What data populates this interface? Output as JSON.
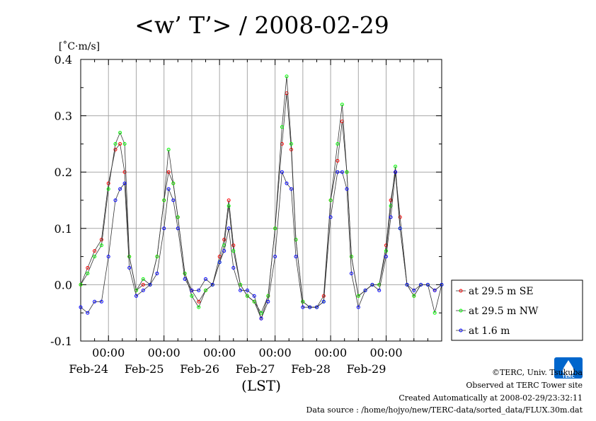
{
  "chart_data": {
    "type": "line",
    "title": "<w’ T’> / 2008-02-29",
    "ylabel": "[˚C·m/s]",
    "xlabel": "(LST)",
    "ylim": [
      -0.1,
      0.4
    ],
    "yticks": [
      "0.4",
      "0.3",
      "0.2",
      "0.1",
      "0.0",
      "-0.1"
    ],
    "xlim": [
      "2008-02-23 12:00",
      "2008-02-29 24:00"
    ],
    "xticks": [
      {
        "time": "00:00",
        "date": "Feb-24"
      },
      {
        "time": "00:00",
        "date": "Feb-25"
      },
      {
        "time": "00:00",
        "date": "Feb-26"
      },
      {
        "time": "00:00",
        "date": "Feb-27"
      },
      {
        "time": "00:00",
        "date": "Feb-28"
      },
      {
        "time": "00:00",
        "date": "Feb-29"
      }
    ],
    "grid": true,
    "legend_position": "right-bottom",
    "series": [
      {
        "name": "at 29.5 m SE",
        "color": "#ff0000",
        "points": [
          [
            "2008-02-23 12:00",
            0.0
          ],
          [
            "2008-02-23 15:00",
            0.03
          ],
          [
            "2008-02-23 18:00",
            0.06
          ],
          [
            "2008-02-23 21:00",
            0.08
          ],
          [
            "2008-02-24 00:00",
            0.18
          ],
          [
            "2008-02-24 03:00",
            0.24
          ],
          [
            "2008-02-24 05:00",
            0.25
          ],
          [
            "2008-02-24 07:00",
            0.2
          ],
          [
            "2008-02-24 09:00",
            0.05
          ],
          [
            "2008-02-24 12:00",
            -0.01
          ],
          [
            "2008-02-24 15:00",
            0.0
          ],
          [
            "2008-02-24 18:00",
            0.0
          ],
          [
            "2008-02-24 21:00",
            0.05
          ],
          [
            "2008-02-25 00:00",
            0.15
          ],
          [
            "2008-02-25 02:00",
            0.2
          ],
          [
            "2008-02-25 04:00",
            0.18
          ],
          [
            "2008-02-25 06:00",
            0.12
          ],
          [
            "2008-02-25 09:00",
            0.02
          ],
          [
            "2008-02-25 12:00",
            -0.01
          ],
          [
            "2008-02-25 15:00",
            -0.03
          ],
          [
            "2008-02-25 18:00",
            -0.01
          ],
          [
            "2008-02-25 21:00",
            0.0
          ],
          [
            "2008-02-26 00:00",
            0.05
          ],
          [
            "2008-02-26 02:00",
            0.08
          ],
          [
            "2008-02-26 04:00",
            0.15
          ],
          [
            "2008-02-26 06:00",
            0.07
          ],
          [
            "2008-02-26 09:00",
            0.0
          ],
          [
            "2008-02-26 12:00",
            -0.02
          ],
          [
            "2008-02-26 15:00",
            -0.03
          ],
          [
            "2008-02-26 18:00",
            -0.06
          ],
          [
            "2008-02-26 21:00",
            -0.02
          ],
          [
            "2008-02-27 00:00",
            0.1
          ],
          [
            "2008-02-27 03:00",
            0.25
          ],
          [
            "2008-02-27 05:00",
            0.34
          ],
          [
            "2008-02-27 07:00",
            0.24
          ],
          [
            "2008-02-27 09:00",
            0.08
          ],
          [
            "2008-02-27 12:00",
            -0.03
          ],
          [
            "2008-02-27 15:00",
            -0.04
          ],
          [
            "2008-02-27 18:00",
            -0.04
          ],
          [
            "2008-02-27 21:00",
            -0.02
          ],
          [
            "2008-02-28 00:00",
            0.15
          ],
          [
            "2008-02-28 03:00",
            0.22
          ],
          [
            "2008-02-28 05:00",
            0.29
          ],
          [
            "2008-02-28 07:00",
            0.2
          ],
          [
            "2008-02-28 09:00",
            0.05
          ],
          [
            "2008-02-28 12:00",
            -0.02
          ],
          [
            "2008-02-28 15:00",
            -0.01
          ],
          [
            "2008-02-28 18:00",
            0.0
          ],
          [
            "2008-02-28 21:00",
            0.0
          ],
          [
            "2008-02-29 00:00",
            0.07
          ],
          [
            "2008-02-29 02:00",
            0.15
          ],
          [
            "2008-02-29 04:00",
            0.2
          ],
          [
            "2008-02-29 06:00",
            0.12
          ],
          [
            "2008-02-29 09:00",
            0.0
          ],
          [
            "2008-02-29 12:00",
            -0.02
          ],
          [
            "2008-02-29 15:00",
            0.0
          ],
          [
            "2008-02-29 18:00",
            0.0
          ],
          [
            "2008-02-29 21:00",
            -0.01
          ],
          [
            "2008-02-29 24:00",
            0.0
          ]
        ]
      },
      {
        "name": "at 29.5 m NW",
        "color": "#00ff00",
        "points": [
          [
            "2008-02-23 12:00",
            0.0
          ],
          [
            "2008-02-23 15:00",
            0.02
          ],
          [
            "2008-02-23 18:00",
            0.05
          ],
          [
            "2008-02-23 21:00",
            0.07
          ],
          [
            "2008-02-24 00:00",
            0.17
          ],
          [
            "2008-02-24 03:00",
            0.25
          ],
          [
            "2008-02-24 05:00",
            0.27
          ],
          [
            "2008-02-24 07:00",
            0.25
          ],
          [
            "2008-02-24 09:00",
            0.05
          ],
          [
            "2008-02-24 12:00",
            -0.01
          ],
          [
            "2008-02-24 15:00",
            0.01
          ],
          [
            "2008-02-24 18:00",
            0.0
          ],
          [
            "2008-02-24 21:00",
            0.05
          ],
          [
            "2008-02-25 00:00",
            0.15
          ],
          [
            "2008-02-25 02:00",
            0.24
          ],
          [
            "2008-02-25 04:00",
            0.18
          ],
          [
            "2008-02-25 06:00",
            0.12
          ],
          [
            "2008-02-25 09:00",
            0.02
          ],
          [
            "2008-02-25 12:00",
            -0.02
          ],
          [
            "2008-02-25 15:00",
            -0.04
          ],
          [
            "2008-02-25 18:00",
            -0.01
          ],
          [
            "2008-02-25 21:00",
            0.0
          ],
          [
            "2008-02-26 00:00",
            0.04
          ],
          [
            "2008-02-26 02:00",
            0.07
          ],
          [
            "2008-02-26 04:00",
            0.14
          ],
          [
            "2008-02-26 06:00",
            0.06
          ],
          [
            "2008-02-26 09:00",
            0.0
          ],
          [
            "2008-02-26 12:00",
            -0.02
          ],
          [
            "2008-02-26 15:00",
            -0.03
          ],
          [
            "2008-02-26 18:00",
            -0.05
          ],
          [
            "2008-02-26 21:00",
            -0.02
          ],
          [
            "2008-02-27 00:00",
            0.1
          ],
          [
            "2008-02-27 03:00",
            0.28
          ],
          [
            "2008-02-27 05:00",
            0.37
          ],
          [
            "2008-02-27 07:00",
            0.25
          ],
          [
            "2008-02-27 09:00",
            0.08
          ],
          [
            "2008-02-27 12:00",
            -0.03
          ],
          [
            "2008-02-27 15:00",
            -0.04
          ],
          [
            "2008-02-27 18:00",
            -0.04
          ],
          [
            "2008-02-27 21:00",
            -0.03
          ],
          [
            "2008-02-28 00:00",
            0.15
          ],
          [
            "2008-02-28 03:00",
            0.25
          ],
          [
            "2008-02-28 05:00",
            0.32
          ],
          [
            "2008-02-28 07:00",
            0.2
          ],
          [
            "2008-02-28 09:00",
            0.05
          ],
          [
            "2008-02-28 12:00",
            -0.02
          ],
          [
            "2008-02-28 15:00",
            -0.01
          ],
          [
            "2008-02-28 18:00",
            0.0
          ],
          [
            "2008-02-28 21:00",
            0.0
          ],
          [
            "2008-02-29 00:00",
            0.06
          ],
          [
            "2008-02-29 02:00",
            0.14
          ],
          [
            "2008-02-29 04:00",
            0.21
          ],
          [
            "2008-02-29 06:00",
            0.1
          ],
          [
            "2008-02-29 09:00",
            0.0
          ],
          [
            "2008-02-29 12:00",
            -0.02
          ],
          [
            "2008-02-29 15:00",
            0.0
          ],
          [
            "2008-02-29 18:00",
            0.0
          ],
          [
            "2008-02-29 21:00",
            -0.05
          ],
          [
            "2008-02-29 24:00",
            0.0
          ]
        ]
      },
      {
        "name": "at 1.6 m",
        "color": "#0000ff",
        "points": [
          [
            "2008-02-23 12:00",
            -0.04
          ],
          [
            "2008-02-23 15:00",
            -0.05
          ],
          [
            "2008-02-23 18:00",
            -0.03
          ],
          [
            "2008-02-23 21:00",
            -0.03
          ],
          [
            "2008-02-24 00:00",
            0.05
          ],
          [
            "2008-02-24 03:00",
            0.15
          ],
          [
            "2008-02-24 05:00",
            0.17
          ],
          [
            "2008-02-24 07:00",
            0.18
          ],
          [
            "2008-02-24 09:00",
            0.03
          ],
          [
            "2008-02-24 12:00",
            -0.02
          ],
          [
            "2008-02-24 15:00",
            -0.01
          ],
          [
            "2008-02-24 18:00",
            0.0
          ],
          [
            "2008-02-24 21:00",
            0.02
          ],
          [
            "2008-02-25 00:00",
            0.1
          ],
          [
            "2008-02-25 02:00",
            0.17
          ],
          [
            "2008-02-25 04:00",
            0.15
          ],
          [
            "2008-02-25 06:00",
            0.1
          ],
          [
            "2008-02-25 09:00",
            0.01
          ],
          [
            "2008-02-25 12:00",
            -0.01
          ],
          [
            "2008-02-25 15:00",
            -0.01
          ],
          [
            "2008-02-25 18:00",
            0.01
          ],
          [
            "2008-02-25 21:00",
            0.0
          ],
          [
            "2008-02-26 00:00",
            0.04
          ],
          [
            "2008-02-26 02:00",
            0.06
          ],
          [
            "2008-02-26 04:00",
            0.1
          ],
          [
            "2008-02-26 06:00",
            0.03
          ],
          [
            "2008-02-26 09:00",
            -0.01
          ],
          [
            "2008-02-26 12:00",
            -0.01
          ],
          [
            "2008-02-26 15:00",
            -0.02
          ],
          [
            "2008-02-26 18:00",
            -0.06
          ],
          [
            "2008-02-26 21:00",
            -0.03
          ],
          [
            "2008-02-27 00:00",
            0.05
          ],
          [
            "2008-02-27 03:00",
            0.2
          ],
          [
            "2008-02-27 05:00",
            0.18
          ],
          [
            "2008-02-27 07:00",
            0.17
          ],
          [
            "2008-02-27 09:00",
            0.05
          ],
          [
            "2008-02-27 12:00",
            -0.04
          ],
          [
            "2008-02-27 15:00",
            -0.04
          ],
          [
            "2008-02-27 18:00",
            -0.04
          ],
          [
            "2008-02-27 21:00",
            -0.03
          ],
          [
            "2008-02-28 00:00",
            0.12
          ],
          [
            "2008-02-28 03:00",
            0.2
          ],
          [
            "2008-02-28 05:00",
            0.2
          ],
          [
            "2008-02-28 07:00",
            0.17
          ],
          [
            "2008-02-28 09:00",
            0.02
          ],
          [
            "2008-02-28 12:00",
            -0.04
          ],
          [
            "2008-02-28 15:00",
            -0.01
          ],
          [
            "2008-02-28 18:00",
            0.0
          ],
          [
            "2008-02-28 21:00",
            -0.01
          ],
          [
            "2008-02-29 00:00",
            0.05
          ],
          [
            "2008-02-29 02:00",
            0.12
          ],
          [
            "2008-02-29 04:00",
            0.2
          ],
          [
            "2008-02-29 06:00",
            0.1
          ],
          [
            "2008-02-29 09:00",
            0.0
          ],
          [
            "2008-02-29 12:00",
            -0.01
          ],
          [
            "2008-02-29 15:00",
            0.0
          ],
          [
            "2008-02-29 18:00",
            0.0
          ],
          [
            "2008-02-29 21:00",
            -0.01
          ],
          [
            "2008-02-29 24:00",
            0.0
          ]
        ]
      }
    ]
  },
  "credits": {
    "copyright": "©TERC, Univ. Tsukuba",
    "observed": "Observed at TERC Tower site",
    "created": "Created Automatically at 2008-02-29/23:32:11",
    "source": "Data source : /home/hojyo/new/TERC-data/sorted_data/FLUX.30m.dat"
  },
  "logo": {
    "text": "TERC",
    "color": "#0066cc"
  }
}
